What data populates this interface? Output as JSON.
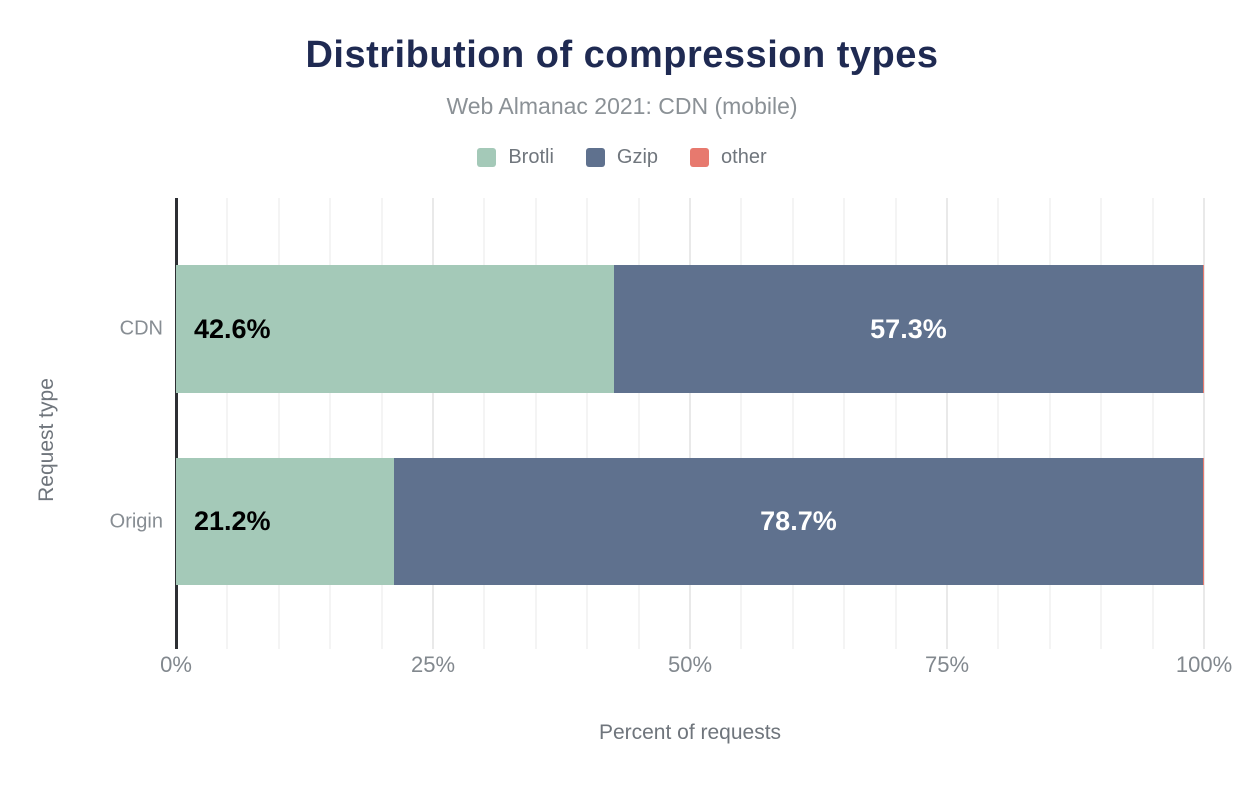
{
  "chart_data": {
    "type": "bar",
    "orientation": "horizontal",
    "stacked": true,
    "title": "Distribution of compression types",
    "subtitle": "Web Almanac 2021: CDN (mobile)",
    "categories": [
      "CDN",
      "Origin"
    ],
    "series": [
      {
        "name": "Brotli",
        "color": "#a4c9b8",
        "values": [
          42.6,
          21.2
        ],
        "label_color": "#000000",
        "label_align": "left"
      },
      {
        "name": "Gzip",
        "color": "#5f718e",
        "values": [
          57.3,
          78.7
        ],
        "label_color": "#ffffff",
        "label_align": "center"
      },
      {
        "name": "other",
        "color": "#e7796e",
        "values": [
          0.1,
          0.1
        ],
        "label_color": "#000000",
        "label_align": "center"
      }
    ],
    "xlabel": "Percent of requests",
    "ylabel": "Request type",
    "xlim": [
      0,
      100
    ],
    "x_ticks": [
      {
        "value": 0,
        "label": "0%"
      },
      {
        "value": 25,
        "label": "25%"
      },
      {
        "value": 50,
        "label": "50%"
      },
      {
        "value": 75,
        "label": "75%"
      },
      {
        "value": 100,
        "label": "100%"
      }
    ],
    "grid": {
      "minor_step": 5,
      "major_step": 25,
      "minor_color": "#f4f4f4",
      "major_color": "#e9e9e9"
    },
    "legend_position": "top",
    "value_label_suffix": "%",
    "value_label_min": 3,
    "colors": {
      "title": "#1f2a52",
      "subtitle": "#8b9196",
      "axis_line": "#2d2f33",
      "tick_text": "#82888e",
      "axis_title_text": "#6f757c"
    }
  }
}
